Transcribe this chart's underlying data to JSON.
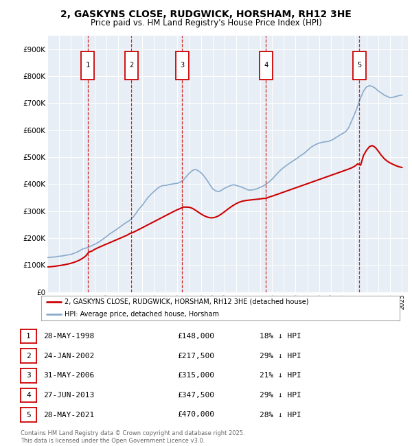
{
  "title": "2, GASKYNS CLOSE, RUDGWICK, HORSHAM, RH12 3HE",
  "subtitle": "Price paid vs. HM Land Registry's House Price Index (HPI)",
  "legend_line1": "2, GASKYNS CLOSE, RUDGWICK, HORSHAM, RH12 3HE (detached house)",
  "legend_line2": "HPI: Average price, detached house, Horsham",
  "footer": "Contains HM Land Registry data © Crown copyright and database right 2025.\nThis data is licensed under the Open Government Licence v3.0.",
  "transactions": [
    {
      "num": 1,
      "date": "28-MAY-1998",
      "price": "£148,000",
      "hpi": "18% ↓ HPI",
      "year": 1998.4
    },
    {
      "num": 2,
      "date": "24-JAN-2002",
      "price": "£217,500",
      "hpi": "29% ↓ HPI",
      "year": 2002.1
    },
    {
      "num": 3,
      "date": "31-MAY-2006",
      "price": "£315,000",
      "hpi": "21% ↓ HPI",
      "year": 2006.4
    },
    {
      "num": 4,
      "date": "27-JUN-2013",
      "price": "£347,500",
      "hpi": "29% ↓ HPI",
      "year": 2013.5
    },
    {
      "num": 5,
      "date": "28-MAY-2021",
      "price": "£470,000",
      "hpi": "28% ↓ HPI",
      "year": 2021.4
    }
  ],
  "red_color": "#cc0000",
  "blue_color": "#88aacc",
  "chart_bg": "#e8eef5",
  "grid_color": "#ffffff",
  "ylim": [
    0,
    950000
  ],
  "xlim_start": 1995,
  "xlim_end": 2025.5,
  "yticks": [
    0,
    100000,
    200000,
    300000,
    400000,
    500000,
    600000,
    700000,
    800000,
    900000
  ],
  "ytick_labels": [
    "£0",
    "£100K",
    "£200K",
    "£300K",
    "£400K",
    "£500K",
    "£600K",
    "£700K",
    "£800K",
    "£900K"
  ]
}
